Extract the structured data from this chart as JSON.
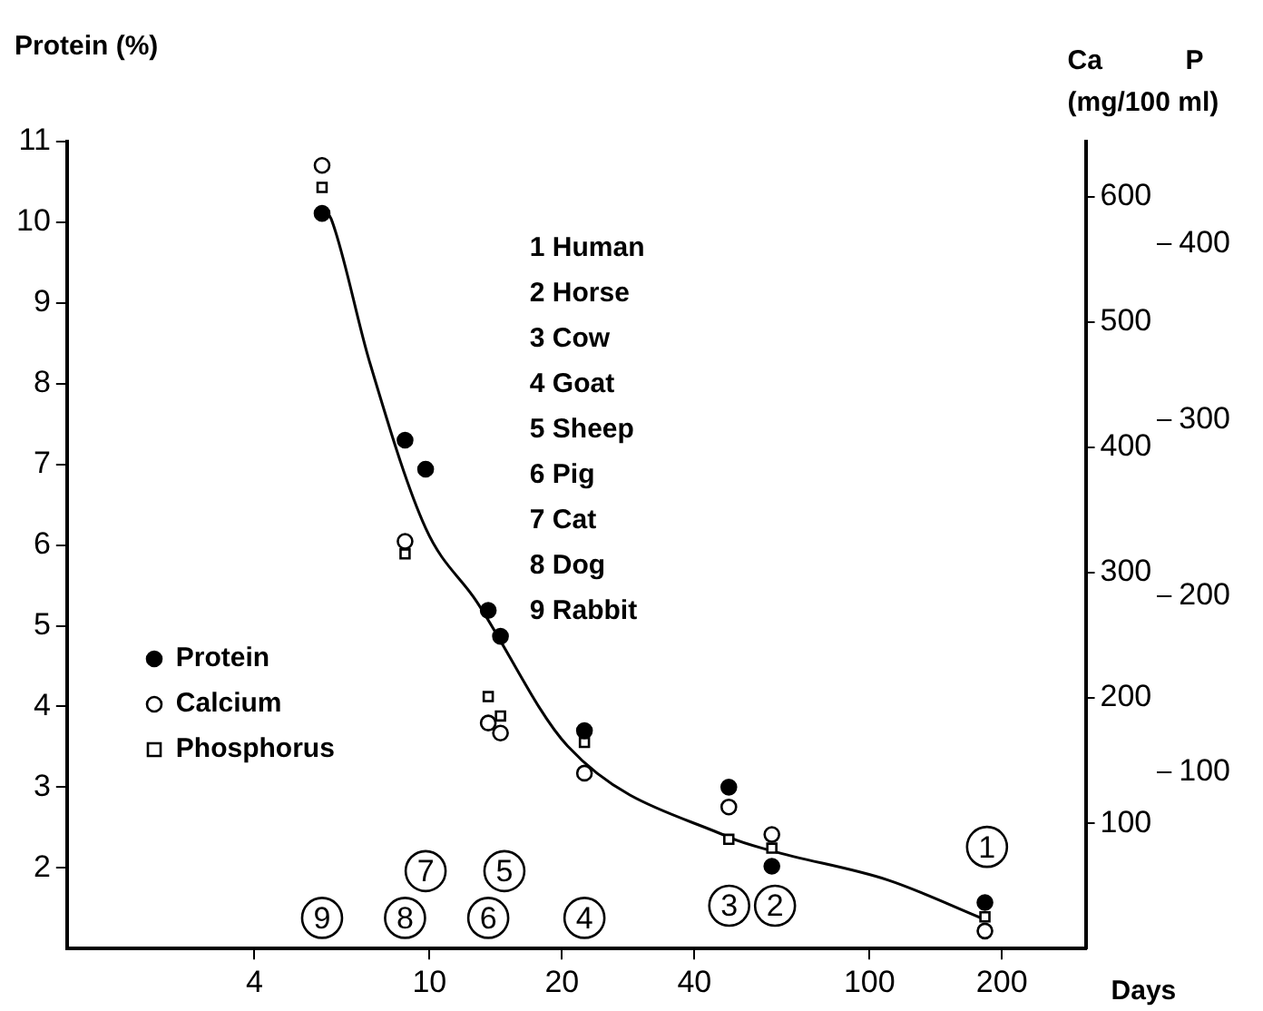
{
  "chart_data": {
    "type": "scatter",
    "xlabel": "Days",
    "ylabel": "Protein (%)",
    "y2label": "Ca\n(mg/100 ml)",
    "y3label": "P",
    "log": "x",
    "xlim": [
      1.5,
      310
    ],
    "xticks": [
      4,
      10,
      20,
      40,
      100,
      200
    ],
    "ylim": [
      1,
      11
    ],
    "yticks": [
      2,
      3,
      4,
      5,
      6,
      7,
      8,
      9,
      10,
      11
    ],
    "y2lim": [
      0,
      644
    ],
    "y2ticks": [
      100,
      200,
      300,
      400,
      500,
      600
    ],
    "y3lim": [
      0,
      458
    ],
    "y3ticks": [
      100,
      200,
      300,
      400
    ],
    "grid": false,
    "legend": "left",
    "series": [
      {
        "name": "Protein",
        "color": "#000000",
        "marker": "circle",
        "x": [
          5.7,
          8.8,
          9.8,
          13.6,
          14.5,
          22.5,
          47.9,
          60,
          183
        ],
        "values": [
          10.11,
          7.3,
          6.94,
          5.19,
          4.87,
          3.7,
          3.0,
          2.02,
          1.57
        ]
      },
      {
        "name": "Calcium",
        "color": "#000000",
        "marker": "circle-open",
        "axis": "y2",
        "x": [
          5.7,
          8.8,
          13.6,
          14.5,
          22.5,
          47.9,
          60,
          183
        ],
        "values": [
          625,
          325,
          180,
          172,
          140,
          113,
          91,
          14
        ]
      },
      {
        "name": "Phosphorus",
        "color": "#000000",
        "marker": "square-open",
        "axis": "y3",
        "x": [
          5.7,
          8.8,
          13.6,
          14.5,
          22.5,
          47.9,
          60,
          183
        ],
        "values": [
          432,
          224,
          143,
          132,
          117,
          62,
          57,
          18
        ]
      },
      {
        "type": "line",
        "color": "#000000",
        "marker": "none",
        "x": [
          5.7,
          5.98,
          7.3,
          9.8,
          12.8,
          20.6,
          47.9,
          60,
          110,
          183
        ],
        "values": [
          10.2,
          10.04,
          8.28,
          6.21,
          5.3,
          3.51,
          2.38,
          2.21,
          1.85,
          1.36
        ]
      }
    ],
    "annotations": [
      "1 Human",
      "2 Horse",
      "3 Cow",
      "4 Goat",
      "5 Sheep",
      "6 Pig",
      "7 Cat",
      "8 Dog",
      "9 Rabbit",
      {
        "text": "1",
        "x": 185,
        "y": 2.26
      },
      {
        "text": "2",
        "x": 61,
        "y": 1.53
      },
      {
        "text": "3",
        "x": 48,
        "y": 1.53
      },
      {
        "text": "4",
        "x": 22.5,
        "y": 1.38
      },
      {
        "text": "5",
        "x": 14.8,
        "y": 1.96
      },
      {
        "text": "6",
        "x": 13.6,
        "y": 1.38
      },
      {
        "text": "7",
        "x": 9.8,
        "y": 1.96
      },
      {
        "text": "8",
        "x": 8.8,
        "y": 1.38
      },
      {
        "text": "9",
        "x": 5.7,
        "y": 1.38
      }
    ]
  }
}
